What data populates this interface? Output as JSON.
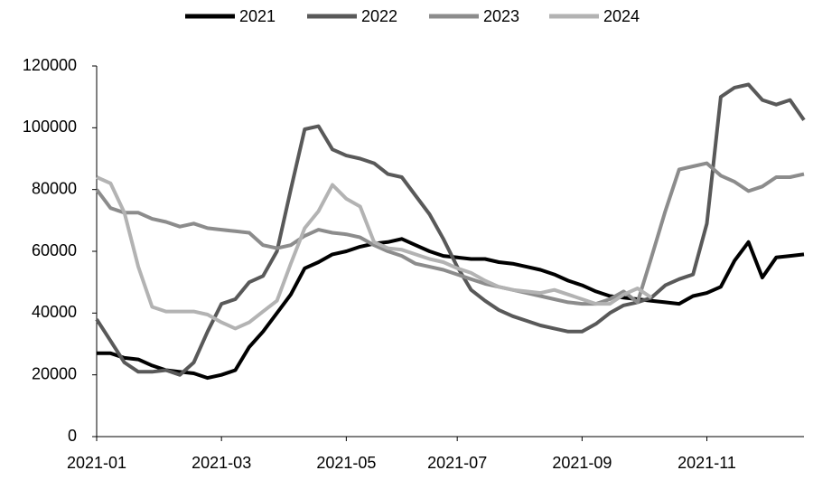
{
  "chart_data": {
    "type": "line",
    "categories": [
      "2021-01",
      null,
      null,
      null,
      null,
      null,
      null,
      null,
      null,
      "2021-03",
      null,
      null,
      null,
      null,
      null,
      null,
      null,
      null,
      "2021-05",
      null,
      null,
      null,
      null,
      null,
      null,
      null,
      "2021-07",
      null,
      null,
      null,
      null,
      null,
      null,
      null,
      null,
      "2021-09",
      null,
      null,
      null,
      null,
      null,
      null,
      null,
      null,
      "2021-11",
      null,
      null,
      null,
      null,
      null,
      null,
      null
    ],
    "series": [
      {
        "name": "2021",
        "color": "#000000",
        "values": [
          27000,
          27000,
          25500,
          25000,
          23000,
          21500,
          21000,
          20500,
          19000,
          20000,
          21500,
          29000,
          34000,
          40000,
          46000,
          54500,
          56500,
          59000,
          60000,
          61500,
          62500,
          63000,
          64000,
          62000,
          60000,
          58500,
          58000,
          57500,
          57500,
          56500,
          56000,
          55000,
          54000,
          52500,
          50500,
          49000,
          47000,
          45500,
          45000,
          44500,
          44000,
          43500,
          43000,
          45500,
          46500,
          48500,
          57000,
          63000,
          51500,
          58000,
          58500,
          59000
        ]
      },
      {
        "name": "2022",
        "color": "#595959",
        "values": [
          38000,
          31000,
          24000,
          21000,
          21000,
          21500,
          20000,
          24000,
          34000,
          43000,
          44500,
          50000,
          52000,
          60000,
          80000,
          99500,
          100500,
          93000,
          91000,
          90000,
          88500,
          85000,
          84000,
          78000,
          72000,
          64000,
          55000,
          47500,
          44000,
          41000,
          39000,
          37500,
          36000,
          35000,
          34000,
          34000,
          36500,
          40000,
          42500,
          43500,
          45000,
          49000,
          51000,
          52500,
          69000,
          110000,
          113000,
          114000,
          109000,
          107500,
          109000,
          102500
        ]
      },
      {
        "name": "2023",
        "color": "#8c8c8c",
        "values": [
          80000,
          74000,
          72500,
          72500,
          70500,
          69500,
          68000,
          69000,
          67500,
          67000,
          66500,
          66000,
          62000,
          61000,
          62000,
          65000,
          67000,
          66000,
          65500,
          64500,
          62000,
          60000,
          58500,
          56000,
          55000,
          54000,
          52500,
          51000,
          49500,
          48500,
          47500,
          46500,
          45500,
          44500,
          43500,
          43000,
          43000,
          44500,
          47000,
          43500,
          58000,
          73000,
          86500,
          87500,
          88500,
          84500,
          82500,
          79500,
          81000,
          84000,
          84000,
          85000
        ]
      },
      {
        "name": "2024",
        "color": "#b3b3b3",
        "values": [
          84000,
          82000,
          72500,
          55000,
          42000,
          40500,
          40500,
          40500,
          39500,
          37000,
          35000,
          37000,
          40500,
          44000,
          56000,
          67500,
          73000,
          81500,
          77000,
          74500,
          63000,
          61000,
          60500,
          59000,
          57500,
          56500,
          54500,
          53000,
          50500,
          48500,
          47500,
          47000,
          46500,
          47500,
          46000,
          44500,
          43000,
          43000,
          46000,
          48000,
          45000,
          null,
          null,
          null,
          null,
          null,
          null,
          null,
          null,
          null,
          null,
          null
        ]
      }
    ],
    "ylim": [
      0,
      120000
    ],
    "yticks": [
      0,
      20000,
      40000,
      60000,
      80000,
      100000,
      120000
    ],
    "grid": false,
    "legend": "top"
  }
}
